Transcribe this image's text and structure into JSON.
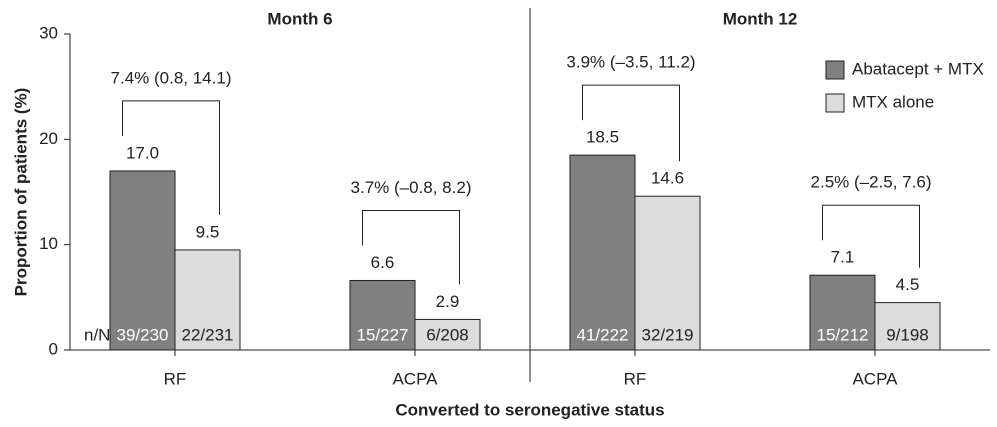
{
  "chart_data": {
    "type": "bar",
    "ylabel": "Proportion of patients (%)",
    "xlabel": "Converted to seronegative status",
    "ylim": [
      0,
      30
    ],
    "yticks": [
      0,
      10,
      20,
      30
    ],
    "legend": "upper right",
    "count_label": "n/N",
    "series": [
      {
        "name": "Abatacept + MTX",
        "color": "#808080"
      },
      {
        "name": "MTX alone",
        "color": "#dcdcdc"
      }
    ],
    "panels": [
      {
        "title": "Month 6",
        "categories": [
          "RF",
          "ACPA"
        ],
        "series": [
          {
            "values": [
              17.0,
              6.6
            ],
            "value_labels": [
              "17.0",
              "6.6"
            ],
            "counts": [
              "39/230",
              "15/227"
            ]
          },
          {
            "values": [
              9.5,
              2.9
            ],
            "value_labels": [
              "9.5",
              "2.9"
            ],
            "counts": [
              "22/231",
              "6/208"
            ]
          }
        ],
        "annotations": [
          "7.4% (0.8, 14.1)",
          "3.7% (–0.8, 8.2)"
        ]
      },
      {
        "title": "Month 12",
        "categories": [
          "RF",
          "ACPA"
        ],
        "series": [
          {
            "values": [
              18.5,
              7.1
            ],
            "value_labels": [
              "18.5",
              "7.1"
            ],
            "counts": [
              "41/222",
              "15/212"
            ]
          },
          {
            "values": [
              14.6,
              4.5
            ],
            "value_labels": [
              "14.6",
              "4.5"
            ],
            "counts": [
              "32/219",
              "9/198"
            ]
          }
        ],
        "annotations": [
          "3.9% (–3.5, 11.2)",
          "2.5% (–2.5, 7.6)"
        ]
      }
    ]
  }
}
